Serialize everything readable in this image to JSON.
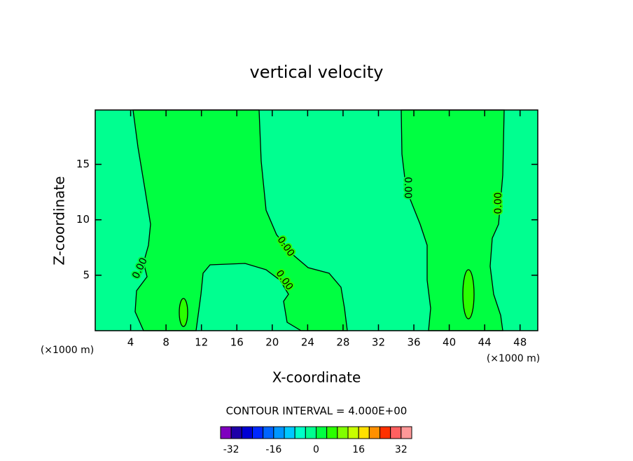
{
  "chart_data": {
    "type": "contour",
    "title": "vertical velocity",
    "x_label": "X-coordinate",
    "y_label": "Z-coordinate",
    "x_unit_label": "(×1000 m)",
    "y_unit_label": "(×1000 m)",
    "xlim": [
      0,
      50
    ],
    "xticks": [
      4,
      8,
      12,
      16,
      20,
      24,
      28,
      32,
      36,
      40,
      44,
      48
    ],
    "ylim": [
      0,
      19.9
    ],
    "yticks": [
      5,
      10,
      15
    ],
    "contour_labels": [
      "0.00",
      "0.00",
      "0.00",
      "0.00",
      "0.00"
    ],
    "interval_label": "CONTOUR INTERVAL = 4.000E+00",
    "colorbar": {
      "levels": [
        -36,
        -32,
        -28,
        -24,
        -20,
        -16,
        -12,
        -8,
        -4,
        0,
        4,
        8,
        12,
        16,
        20,
        24,
        28,
        32,
        36
      ],
      "colors": [
        "#7f00bf",
        "#1e00a8",
        "#0000d4",
        "#0028ff",
        "#0064ff",
        "#0096ff",
        "#00c8ff",
        "#00ffc8",
        "#00ff90",
        "#00ff41",
        "#2aff00",
        "#80ff00",
        "#c8ff00",
        "#ffe000",
        "#ff9000",
        "#ff3000",
        "#ff6060",
        "#ff9898"
      ],
      "ticks": [
        -32,
        -16,
        0,
        16,
        32
      ]
    }
  }
}
